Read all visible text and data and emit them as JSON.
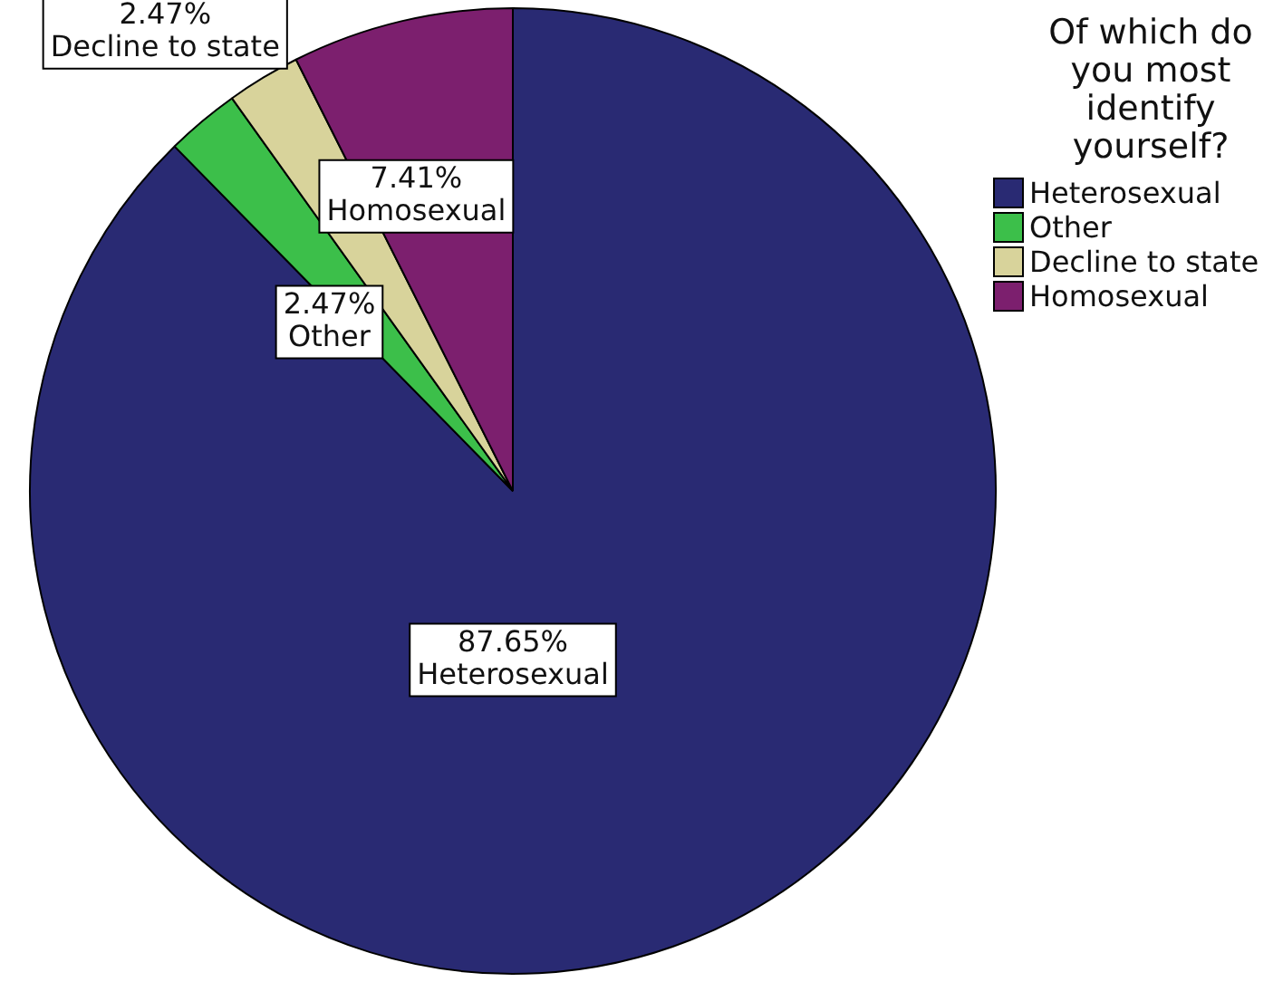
{
  "chart_data": {
    "type": "pie",
    "legend_title": "Of which do you most identify yourself?",
    "legend": "right",
    "categories": [
      "Heterosexual",
      "Other",
      "Decline to state",
      "Homosexual"
    ],
    "values": [
      87.65,
      2.47,
      2.47,
      7.41
    ],
    "value_labels": [
      "87.65%",
      "2.47%",
      "2.47%",
      "7.41%"
    ],
    "colors": [
      "#292a73",
      "#3cbf4a",
      "#d8d39b",
      "#7c1f6e"
    ]
  }
}
